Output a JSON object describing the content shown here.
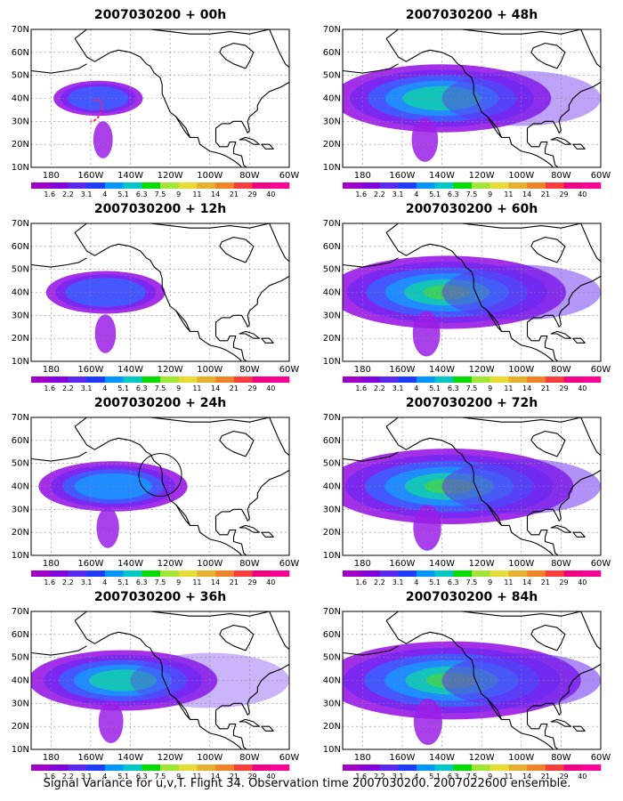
{
  "panels": [
    {
      "title": "2007030200 + 00h",
      "level": 0.15
    },
    {
      "title": "2007030200 + 48h",
      "level": 0.8
    },
    {
      "title": "2007030200 + 12h",
      "level": 0.3
    },
    {
      "title": "2007030200 + 60h",
      "level": 0.9
    },
    {
      "title": "2007030200 + 24h",
      "level": 0.45
    },
    {
      "title": "2007030200 + 72h",
      "level": 0.95
    },
    {
      "title": "2007030200 + 36h",
      "level": 0.65
    },
    {
      "title": "2007030200 + 84h",
      "level": 1.0
    }
  ],
  "axes": {
    "lat_labels": [
      "70N",
      "60N",
      "50N",
      "40N",
      "30N",
      "20N",
      "10N"
    ],
    "lon_labels": [
      "180",
      "160W",
      "140W",
      "120W",
      "100W",
      "80W",
      "60W"
    ]
  },
  "colorbar": {
    "labels": [
      "1.6",
      "2.2",
      "3.1",
      "4",
      "5.1",
      "6.3",
      "7.5",
      "9",
      "11",
      "14",
      "21",
      "29",
      "40"
    ],
    "colors": [
      "#a000c8",
      "#8200dc",
      "#5a28f0",
      "#1e3cff",
      "#0096ff",
      "#00c8c8",
      "#00dc00",
      "#a0e632",
      "#e6dc32",
      "#e6af2d",
      "#f08228",
      "#fa3c3c",
      "#f00082",
      "#ff0096"
    ]
  },
  "caption": "Signal Variance for u,v,T. Flight 34. Observation time 2007030200. 2007022600 ensemble."
}
